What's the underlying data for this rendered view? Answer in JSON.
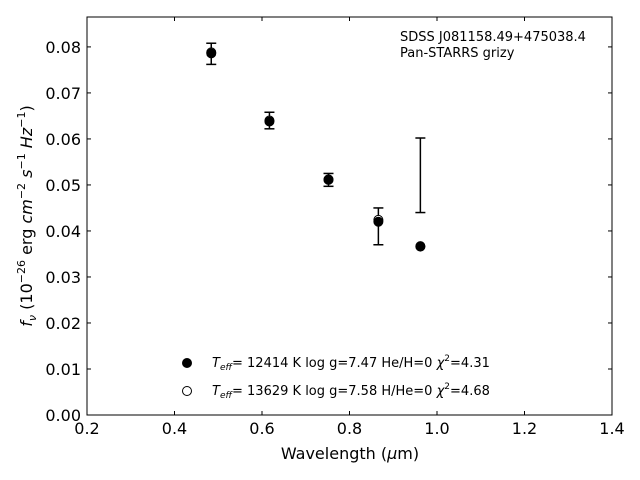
{
  "chart_data": {
    "type": "scatter",
    "annotation": {
      "line1": "SDSS J081158.49+475038.4",
      "line2": "Pan-STARRS grizy"
    },
    "xlabel": {
      "prefix": "Wavelength (",
      "greek": "μ",
      "suffix": "m)"
    },
    "ylabel": {
      "text": "(10",
      "exp1": "−26",
      "unit": " erg ",
      "cm": "cm",
      "exp2": "−2",
      "s": "s",
      "exp3": "−1",
      "hz": "Hz",
      "exp4": "−1",
      "close": ")"
    },
    "xlim": [
      0.2,
      1.4
    ],
    "ylim": [
      0.0,
      0.0865
    ],
    "xticks": [
      0.2,
      0.4,
      0.6,
      0.8,
      1.0,
      1.2,
      1.4
    ],
    "xtick_labels": [
      "0.2",
      "0.4",
      "0.6",
      "0.8",
      "1.0",
      "1.2",
      "1.4"
    ],
    "yticks": [
      0.0,
      0.01,
      0.02,
      0.03,
      0.04,
      0.05,
      0.06,
      0.07,
      0.08
    ],
    "ytick_labels": [
      "0.00",
      "0.01",
      "0.02",
      "0.03",
      "0.04",
      "0.05",
      "0.06",
      "0.07",
      "0.08"
    ],
    "observed": [
      {
        "x": 0.484,
        "y": 0.0785,
        "yerr": 0.0023
      },
      {
        "x": 0.617,
        "y": 0.064,
        "yerr": 0.0018
      },
      {
        "x": 0.752,
        "y": 0.0511,
        "yerr": 0.0014
      },
      {
        "x": 0.866,
        "y": 0.041,
        "yerr": 0.004
      },
      {
        "x": 0.962,
        "y": 0.0521,
        "yerr": 0.0081
      }
    ],
    "series": [
      {
        "marker": "filled",
        "legend": {
          "teff": "= 12414 K",
          "rest": "log g=7.47  He/H=0",
          "chi": "=4.31"
        },
        "x": [
          0.484,
          0.617,
          0.752,
          0.866,
          0.962
        ],
        "y": [
          0.0786,
          0.0638,
          0.0511,
          0.042,
          0.0366
        ]
      },
      {
        "marker": "open",
        "legend": {
          "teff": "= 13629 K",
          "rest": "log g=7.58  H/He=0",
          "chi": "=4.68"
        },
        "x": [
          0.484,
          0.617,
          0.752,
          0.866,
          0.962
        ],
        "y": [
          0.0788,
          0.064,
          0.0512,
          0.0424,
          0.0367
        ]
      }
    ]
  }
}
